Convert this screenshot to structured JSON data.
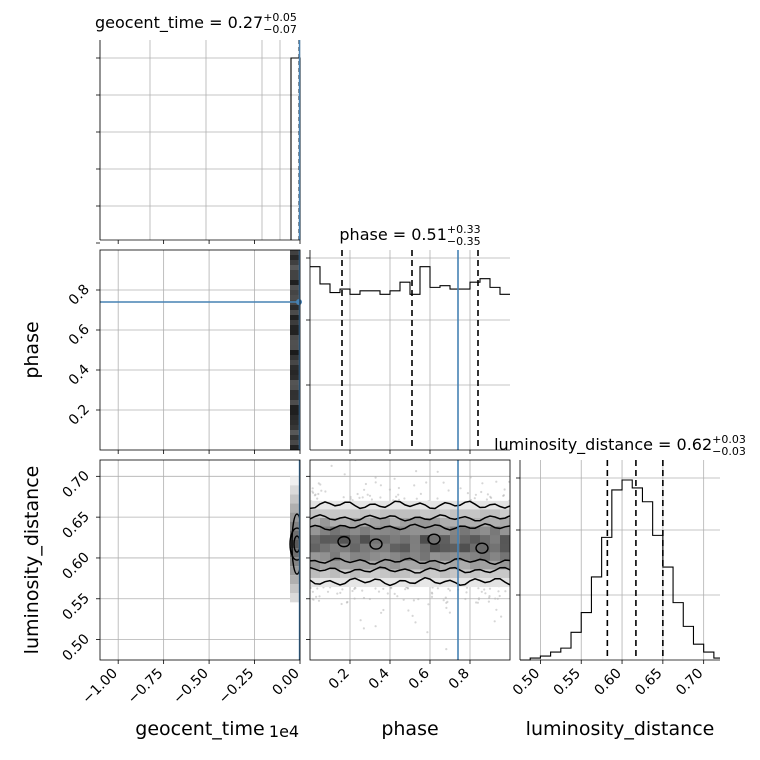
{
  "chart_data": {
    "type": "corner",
    "parameters": [
      "geocent_time",
      "phase",
      "luminosity_distance"
    ],
    "axis_labels": [
      "geocent_time",
      "phase",
      "luminosity_distance"
    ],
    "offset_text": "1e4",
    "truth_color": "#4682b4",
    "truths": {
      "phase": 0.74,
      "luminosity_distance": 0.62,
      "geocent_time_x": 0.0
    },
    "ranges": {
      "geocent_time": [
        -1.1,
        0.0
      ],
      "phase": [
        0.0,
        1.0
      ],
      "luminosity_distance": [
        0.475,
        0.72
      ]
    },
    "ticks": {
      "geocent_time": [
        "−1.00",
        "−0.75",
        "−0.50",
        "−0.25",
        "0.00"
      ],
      "geocent_time_values": [
        -1.0,
        -0.75,
        -0.5,
        -0.25,
        0.0
      ],
      "phase_x": [
        "0.2",
        "0.4",
        "0.6",
        "0.8"
      ],
      "phase_x_values": [
        0.2,
        0.4,
        0.6,
        0.8
      ],
      "phase_y": [
        "0.2",
        "0.4",
        "0.6",
        "0.8"
      ],
      "phase_y_values": [
        0.2,
        0.4,
        0.6,
        0.8
      ],
      "luminosity_distance_x": [
        "0.50",
        "0.55",
        "0.60",
        "0.65",
        "0.70"
      ],
      "luminosity_distance_y": [
        "0.50",
        "0.55",
        "0.60",
        "0.65",
        "0.70"
      ],
      "luminosity_distance_values": [
        0.5,
        0.55,
        0.6,
        0.65,
        0.7
      ]
    },
    "titles": [
      {
        "param": "geocent_time",
        "prefix": "geocent_time = 0.27",
        "plus": "+0.05",
        "minus": "−0.07"
      },
      {
        "param": "phase",
        "prefix": "phase = 0.51",
        "plus": "+0.33",
        "minus": "−0.35"
      },
      {
        "param": "luminosity_distance",
        "prefix": "luminosity_distance = 0.62",
        "plus": "+0.03",
        "minus": "−0.03"
      }
    ],
    "quantile_lines": {
      "phase": [
        0.16,
        0.51,
        0.84
      ],
      "luminosity_distance": [
        0.582,
        0.617,
        0.65
      ]
    },
    "hist_phase": {
      "bin_edges": [
        0.0,
        0.05,
        0.1,
        0.15,
        0.2,
        0.25,
        0.3,
        0.35,
        0.4,
        0.45,
        0.5,
        0.55,
        0.6,
        0.65,
        0.7,
        0.75,
        0.8,
        0.85,
        0.9,
        0.95,
        1.0
      ],
      "counts": [
        0.95,
        0.85,
        0.8,
        0.82,
        0.79,
        0.81,
        0.81,
        0.79,
        0.81,
        0.86,
        0.79,
        0.95,
        0.83,
        0.84,
        0.82,
        0.82,
        0.86,
        0.88,
        0.83,
        0.79
      ]
    },
    "hist_luminosity_distance": {
      "bin_edges": [
        0.475,
        0.4875,
        0.5,
        0.5125,
        0.525,
        0.5375,
        0.55,
        0.5625,
        0.575,
        0.5875,
        0.6,
        0.6125,
        0.625,
        0.6375,
        0.65,
        0.6625,
        0.675,
        0.6875,
        0.7,
        0.7125,
        0.72
      ],
      "counts": [
        0.0,
        0.01,
        0.02,
        0.04,
        0.06,
        0.14,
        0.24,
        0.42,
        0.62,
        0.86,
        0.91,
        0.87,
        0.8,
        0.63,
        0.47,
        0.29,
        0.17,
        0.08,
        0.04,
        0.01
      ]
    },
    "hist_geocent_time": {
      "peak_value": 0.0,
      "count": 1.0
    }
  }
}
